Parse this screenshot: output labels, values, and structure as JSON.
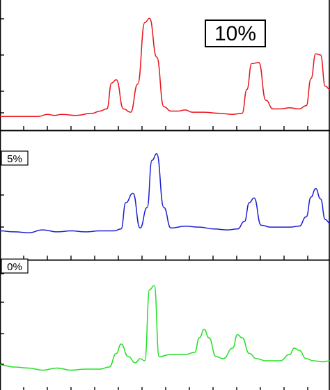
{
  "chart_data": [
    {
      "type": "line",
      "label": "10%",
      "color": "#e8141b",
      "ylim": [
        0,
        1
      ],
      "x": [
        0,
        0.5,
        0.8,
        1.0,
        1.15,
        1.3,
        1.6,
        1.95,
        2.1,
        2.25,
        2.35,
        2.45,
        2.6,
        2.75,
        2.9,
        3.05,
        3.15,
        3.3,
        3.45,
        3.6,
        3.75,
        3.9,
        4.05,
        4.3,
        4.6,
        4.9,
        5.1,
        5.2,
        5.3,
        5.45,
        5.6,
        5.75,
        5.9,
        6.1,
        6.3,
        6.45,
        6.55,
        6.65,
        6.75,
        6.85,
        6.95
      ],
      "values": [
        0.05,
        0.05,
        0.05,
        0.07,
        0.06,
        0.07,
        0.06,
        0.08,
        0.1,
        0.12,
        0.36,
        0.39,
        0.12,
        0.09,
        0.35,
        0.92,
        0.96,
        0.6,
        0.14,
        0.1,
        0.1,
        0.11,
        0.09,
        0.09,
        0.08,
        0.07,
        0.08,
        0.3,
        0.54,
        0.55,
        0.2,
        0.12,
        0.12,
        0.13,
        0.12,
        0.15,
        0.4,
        0.63,
        0.62,
        0.33,
        0.3
      ]
    },
    {
      "type": "line",
      "label": "5%",
      "color": "#1c1fd2",
      "ylim": [
        0,
        1
      ],
      "x": [
        0,
        0.3,
        0.6,
        0.9,
        1.2,
        1.5,
        1.8,
        2.1,
        2.4,
        2.55,
        2.65,
        2.8,
        2.95,
        3.1,
        3.2,
        3.3,
        3.45,
        3.6,
        3.9,
        4.2,
        4.5,
        4.8,
        5.0,
        5.15,
        5.25,
        5.35,
        5.5,
        5.7,
        5.9,
        6.1,
        6.3,
        6.45,
        6.55,
        6.65,
        6.75,
        6.85,
        6.95
      ],
      "values": [
        0.1,
        0.09,
        0.08,
        0.11,
        0.09,
        0.1,
        0.09,
        0.1,
        0.1,
        0.12,
        0.4,
        0.5,
        0.13,
        0.35,
        0.85,
        0.92,
        0.35,
        0.13,
        0.15,
        0.14,
        0.12,
        0.11,
        0.12,
        0.2,
        0.4,
        0.45,
        0.16,
        0.14,
        0.14,
        0.14,
        0.15,
        0.25,
        0.46,
        0.55,
        0.44,
        0.22,
        0.18
      ]
    },
    {
      "type": "line",
      "label": "0%",
      "color": "#22e022",
      "ylim": [
        0,
        1
      ],
      "x": [
        0,
        0.3,
        0.6,
        0.9,
        1.2,
        1.5,
        1.8,
        2.1,
        2.3,
        2.45,
        2.55,
        2.7,
        2.85,
        2.95,
        3.05,
        3.15,
        3.25,
        3.35,
        3.6,
        3.9,
        4.1,
        4.2,
        4.3,
        4.4,
        4.55,
        4.7,
        4.9,
        5.0,
        5.1,
        5.25,
        5.4,
        5.6,
        5.9,
        6.1,
        6.2,
        6.3,
        6.45,
        6.6,
        6.8,
        6.95
      ],
      "values": [
        0.14,
        0.12,
        0.11,
        0.09,
        0.11,
        0.09,
        0.1,
        0.1,
        0.12,
        0.25,
        0.34,
        0.22,
        0.16,
        0.2,
        0.18,
        0.86,
        0.9,
        0.22,
        0.24,
        0.24,
        0.26,
        0.4,
        0.48,
        0.4,
        0.22,
        0.2,
        0.3,
        0.43,
        0.4,
        0.25,
        0.2,
        0.18,
        0.18,
        0.24,
        0.3,
        0.28,
        0.2,
        0.18,
        0.17,
        0.18
      ]
    }
  ]
}
